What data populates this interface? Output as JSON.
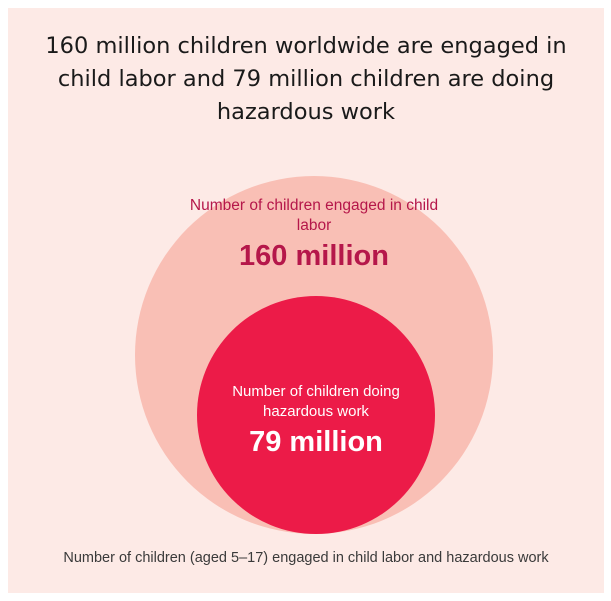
{
  "title": "160 million children worldwide are engaged in child labor and 79 million children are doing hazardous work",
  "outer": {
    "label": "Number of children engaged in child labor",
    "value": "160 million",
    "color": "#f9bfb5"
  },
  "inner": {
    "label": "Number of children doing hazardous work",
    "value": "79 million",
    "color": "#ec1b48"
  },
  "caption": "Number of children (aged 5–17) engaged in child labor and hazardous work",
  "colors": {
    "background": "#fdeae6",
    "accent_text": "#b5174a"
  }
}
